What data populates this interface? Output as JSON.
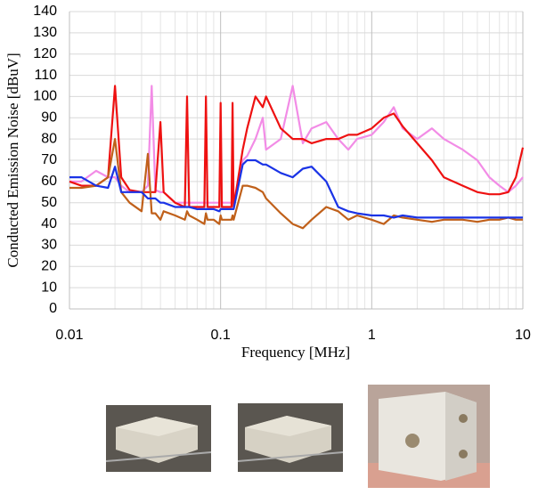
{
  "chart_data": {
    "type": "line",
    "xlabel": "Frequency [MHz]",
    "ylabel": "Conducted Emission Noise [dBuV]",
    "xscale": "log",
    "grid": true,
    "x": [
      0.01,
      0.012,
      0.015,
      0.018,
      0.02,
      0.022,
      0.025,
      0.03,
      0.033,
      0.035,
      0.037,
      0.04,
      0.042,
      0.05,
      0.058,
      0.06,
      0.062,
      0.07,
      0.078,
      0.08,
      0.082,
      0.09,
      0.098,
      0.1,
      0.102,
      0.11,
      0.118,
      0.12,
      0.122,
      0.14,
      0.15,
      0.17,
      0.19,
      0.2,
      0.25,
      0.3,
      0.35,
      0.4,
      0.5,
      0.6,
      0.7,
      0.8,
      1,
      1.2,
      1.4,
      1.6,
      2,
      2.5,
      3,
      4,
      5,
      6,
      7,
      8,
      9,
      10
    ],
    "series": [
      {
        "color": "#f28ce6",
        "values": [
          60,
          60,
          65,
          62,
          62,
          58,
          55,
          55,
          58,
          105,
          56,
          55,
          55,
          50,
          50,
          50,
          50,
          50,
          50,
          50,
          50,
          50,
          50,
          50,
          50,
          50,
          50,
          50,
          50,
          70,
          72,
          80,
          90,
          75,
          80,
          105,
          78,
          85,
          88,
          80,
          75,
          80,
          82,
          88,
          95,
          85,
          80,
          85,
          80,
          75,
          70,
          62,
          58,
          55,
          58,
          62
        ]
      },
      {
        "color": "#ee1111",
        "values": [
          60,
          58,
          58,
          62,
          105,
          62,
          56,
          55,
          55,
          55,
          55,
          88,
          55,
          50,
          48,
          100,
          48,
          48,
          48,
          100,
          48,
          48,
          48,
          97,
          48,
          48,
          48,
          97,
          48,
          75,
          85,
          100,
          95,
          100,
          85,
          80,
          80,
          78,
          80,
          80,
          82,
          82,
          85,
          90,
          92,
          86,
          78,
          70,
          62,
          58,
          55,
          54,
          54,
          55,
          62,
          76
        ]
      },
      {
        "color": "#c0601a",
        "values": [
          57,
          57,
          58,
          62,
          80,
          55,
          50,
          46,
          73,
          45,
          45,
          42,
          46,
          44,
          42,
          46,
          44,
          42,
          40,
          45,
          42,
          42,
          40,
          44,
          42,
          42,
          42,
          44,
          42,
          58,
          58,
          57,
          55,
          52,
          45,
          40,
          38,
          42,
          48,
          46,
          42,
          44,
          42,
          40,
          44,
          43,
          42,
          41,
          42,
          42,
          41,
          42,
          42,
          43,
          42,
          42
        ]
      },
      {
        "color": "#1a33e6",
        "values": [
          62,
          62,
          58,
          57,
          67,
          55,
          55,
          55,
          52,
          52,
          52,
          50,
          50,
          48,
          48,
          48,
          48,
          47,
          47,
          47,
          47,
          47,
          46,
          47,
          47,
          47,
          47,
          47,
          47,
          68,
          70,
          70,
          68,
          68,
          64,
          62,
          66,
          67,
          60,
          48,
          46,
          45,
          44,
          44,
          43,
          44,
          43,
          43,
          43,
          43,
          43,
          43,
          43,
          43,
          43,
          43
        ]
      }
    ],
    "xlim": [
      0.01,
      10
    ],
    "xticks": [
      0.01,
      0.1,
      1,
      10
    ],
    "xminorticks": [
      0.02,
      0.03,
      0.04,
      0.05,
      0.06,
      0.07,
      0.08,
      0.09,
      0.2,
      0.3,
      0.4,
      0.5,
      0.6,
      0.7,
      0.8,
      0.9,
      2,
      3,
      4,
      5,
      6,
      7,
      8,
      9
    ],
    "ylim": [
      0,
      140
    ],
    "yticks": [
      0,
      10,
      20,
      30,
      40,
      50,
      60,
      70,
      80,
      90,
      100,
      110,
      120,
      130,
      140
    ]
  }
}
